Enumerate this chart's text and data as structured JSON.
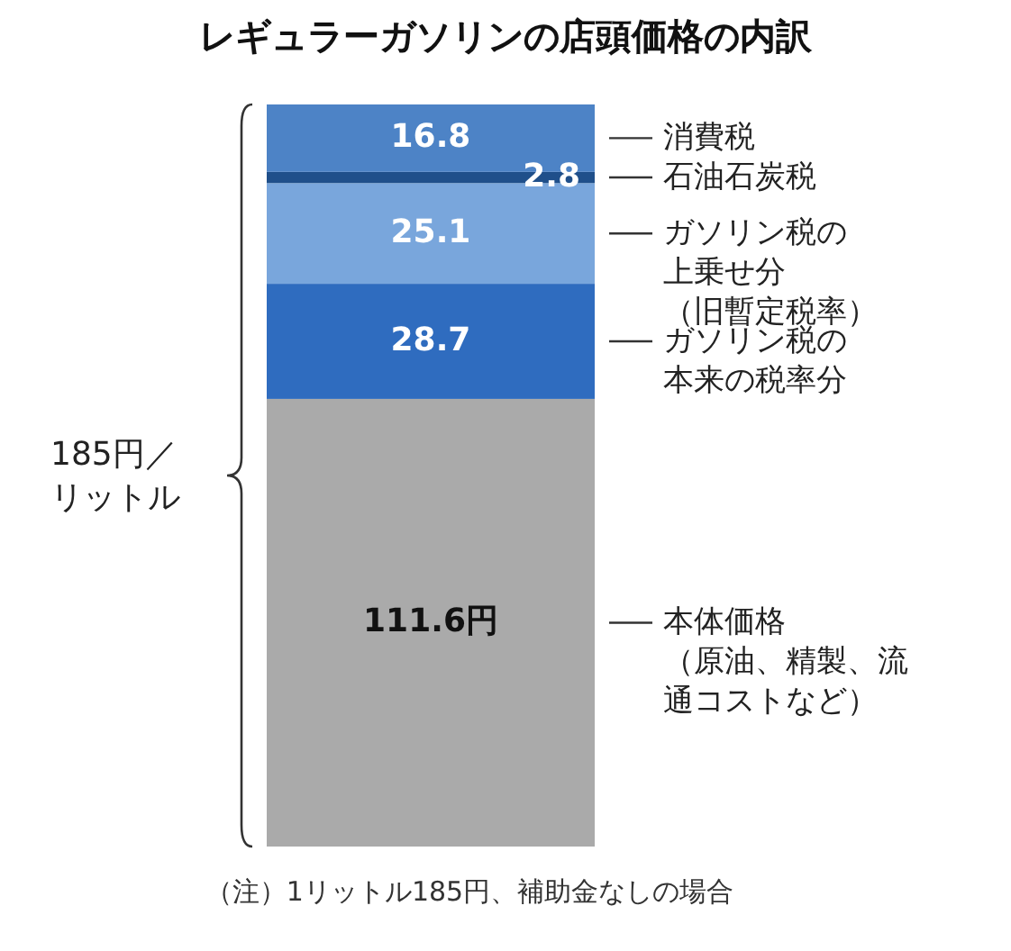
{
  "chart_data": {
    "type": "bar",
    "stacked": true,
    "title": "レギュラーガソリンの店頭価格の内訳",
    "categories": [
      null
    ],
    "series": [
      {
        "name": "本体価格（原油、精製、流通コストなど）",
        "color": "#aaaaaa",
        "values": [
          111.6
        ],
        "value_labels": [
          "111.6円"
        ]
      },
      {
        "name": "ガソリン税の本来の税率分",
        "color": "#2f6cbf",
        "values": [
          28.7
        ],
        "value_labels": [
          "28.7"
        ]
      },
      {
        "name": "ガソリン税の上乗せ分（旧暫定税率）",
        "color": "#79a6dc",
        "values": [
          25.1
        ],
        "value_labels": [
          "25.1"
        ]
      },
      {
        "name": "石油石炭税",
        "color": "#1f4f8a",
        "values": [
          2.8
        ],
        "value_labels": [
          "2.8"
        ]
      },
      {
        "name": "消費税",
        "color": "#4d83c6",
        "values": [
          16.8
        ],
        "value_labels": [
          "16.8"
        ]
      }
    ],
    "annotations": [
      "185円／リットル",
      "（注）1リットル185円、補助金なしの場合"
    ]
  }
}
